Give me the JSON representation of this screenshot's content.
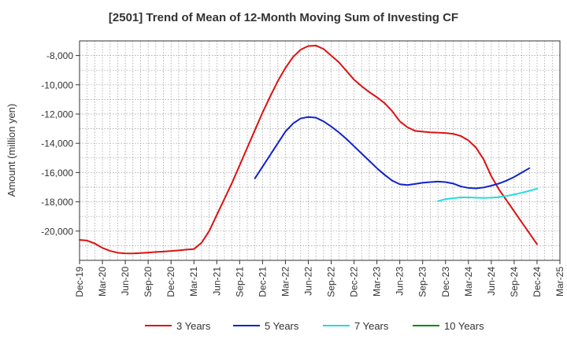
{
  "chart_data": {
    "type": "line",
    "title": "[2501]  Trend of Mean of 12-Month Moving Sum of Investing CF",
    "ylabel": "Amount (million yen)",
    "xlabel": "",
    "ylim": [
      -22000,
      -7000
    ],
    "yticks": [
      -8000,
      -10000,
      -12000,
      -14000,
      -16000,
      -18000,
      -20000
    ],
    "ytick_labels": [
      "-8,000",
      "-10,000",
      "-12,000",
      "-14,000",
      "-16,000",
      "-18,000",
      "-20,000"
    ],
    "x_tick_labels": [
      "Dec-19",
      "Mar-20",
      "Jun-20",
      "Sep-20",
      "Dec-20",
      "Mar-21",
      "Jun-21",
      "Sep-21",
      "Dec-21",
      "Mar-22",
      "Jun-22",
      "Sep-22",
      "Dec-22",
      "Mar-23",
      "Jun-23",
      "Sep-23",
      "Dec-23",
      "Mar-24",
      "Jun-24",
      "Sep-24",
      "Dec-24",
      "Mar-25"
    ],
    "grid": true,
    "legend_position": "bottom",
    "series": [
      {
        "name": "3 Years",
        "color": "#dd1111",
        "start_month": "2019-12",
        "values": [
          -20600,
          -20650,
          -20850,
          -21150,
          -21350,
          -21480,
          -21520,
          -21530,
          -21500,
          -21470,
          -21430,
          -21400,
          -21360,
          -21320,
          -21270,
          -21230,
          -20800,
          -20000,
          -18900,
          -17800,
          -16700,
          -15500,
          -14300,
          -13100,
          -11900,
          -10800,
          -9750,
          -8850,
          -8100,
          -7600,
          -7350,
          -7320,
          -7550,
          -8000,
          -8450,
          -9050,
          -9650,
          -10100,
          -10500,
          -10850,
          -11250,
          -11800,
          -12500,
          -12900,
          -13150,
          -13200,
          -13250,
          -13270,
          -13300,
          -13350,
          -13500,
          -13800,
          -14300,
          -15100,
          -16250,
          -17150,
          -17900,
          -18650,
          -19400,
          -20150,
          -20900
        ]
      },
      {
        "name": "5 Years",
        "color": "#1122cc",
        "start_month": "2021-11",
        "values": [
          -16400,
          -15600,
          -14800,
          -14000,
          -13200,
          -12650,
          -12300,
          -12200,
          -12250,
          -12500,
          -12850,
          -13250,
          -13700,
          -14200,
          -14700,
          -15200,
          -15700,
          -16150,
          -16550,
          -16800,
          -16850,
          -16780,
          -16700,
          -16650,
          -16620,
          -16650,
          -16750,
          -16950,
          -17050,
          -17080,
          -17020,
          -16900,
          -16750,
          -16550,
          -16300,
          -16000,
          -15700
        ]
      },
      {
        "name": "7 Years",
        "color": "#22dddd",
        "start_month": "2023-11",
        "values": [
          -17950,
          -17820,
          -17750,
          -17700,
          -17700,
          -17720,
          -17730,
          -17720,
          -17680,
          -17600,
          -17500,
          -17380,
          -17250,
          -17100
        ]
      },
      {
        "name": "10 Years",
        "color": "#118811",
        "start_month": "2019-12",
        "values": []
      }
    ]
  }
}
